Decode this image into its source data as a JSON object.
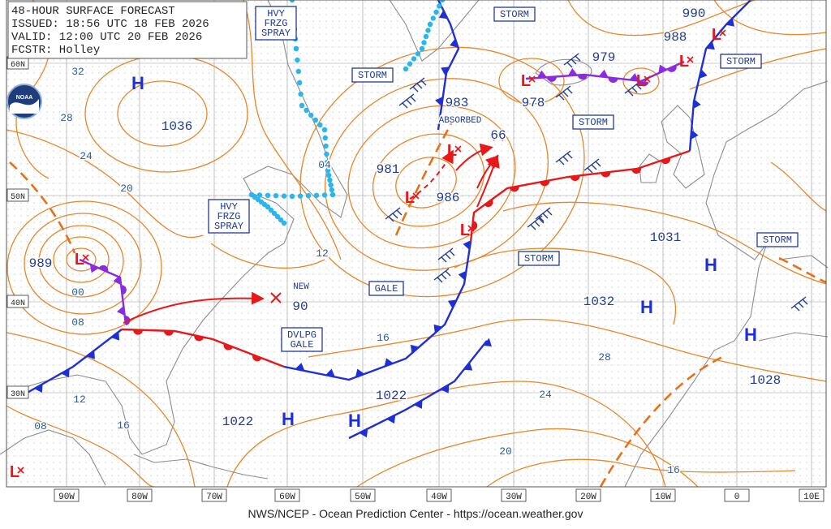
{
  "header": {
    "title": "48-HOUR SURFACE FORECAST",
    "issued": "ISSUED: 18:56 UTC 18 FEB 2026",
    "valid": "VALID: 12:00 UTC 20 FEB 2026",
    "forecaster": "FCSTR: Holley"
  },
  "logo": "NOAA",
  "footer": "NWS/NCEP - Ocean Prediction Center - https://ocean.weather.gov",
  "latitude_labels": [
    "60N",
    "50N",
    "40N",
    "30N"
  ],
  "longitude_labels": [
    "90W",
    "80W",
    "70W",
    "60W",
    "50W",
    "40W",
    "30W",
    "20W",
    "10W",
    "0",
    "10E"
  ],
  "high_symbol": "H",
  "low_symbol": "L",
  "highs": [
    1036,
    1022,
    1022,
    1032,
    1031,
    1028
  ],
  "lows": [
    989,
    981,
    986,
    983,
    978,
    979,
    988,
    990,
    66,
    90
  ],
  "isobar_labels": [
    "32",
    "28",
    "24",
    "20",
    "16",
    "12",
    "08",
    "00",
    "04",
    "12",
    "08",
    "16",
    "24",
    "28",
    "20",
    "16"
  ],
  "warnings": [
    {
      "lines": [
        "HVY",
        "FRZG",
        "SPRAY"
      ]
    },
    {
      "lines": [
        "HVY",
        "FRZG",
        "SPRAY"
      ]
    },
    {
      "lines": [
        "STORM"
      ]
    },
    {
      "lines": [
        "STORM"
      ]
    },
    {
      "lines": [
        "STORM"
      ]
    },
    {
      "lines": [
        "STORM"
      ]
    },
    {
      "lines": [
        "STORM"
      ]
    },
    {
      "lines": [
        "STORM"
      ]
    },
    {
      "lines": [
        "GALE"
      ]
    },
    {
      "lines": [
        "DVLPG",
        "GALE"
      ]
    }
  ],
  "annotations": [
    "ABSORBED",
    "NEW"
  ]
}
